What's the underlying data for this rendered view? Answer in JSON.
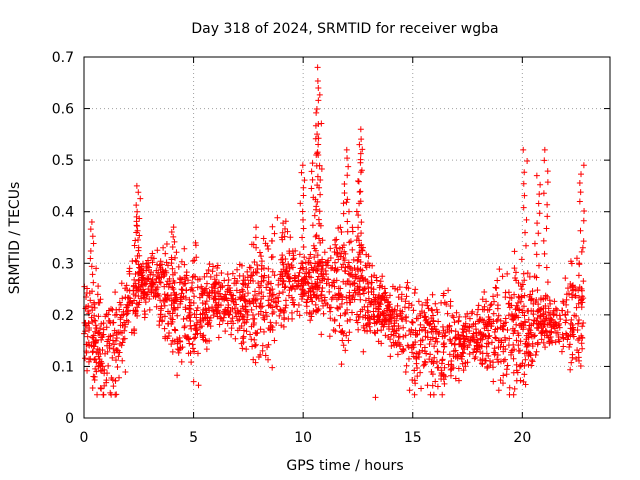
{
  "chart_data": {
    "type": "scatter",
    "title": "Day 318 of 2024, SRMTID for receiver wgba",
    "xlabel": "GPS time / hours",
    "ylabel": "SRMTID / TECUs",
    "xlim": [
      0,
      24
    ],
    "ylim": [
      0,
      0.7
    ],
    "xticks": [
      0,
      5,
      10,
      15,
      20
    ],
    "yticks": [
      0,
      0.1,
      0.2,
      0.3,
      0.4,
      0.5,
      0.6,
      0.7
    ],
    "xtick_labels": [
      "0",
      "5",
      "10",
      "15",
      "20"
    ],
    "ytick_labels": [
      "0",
      "0.1",
      "0.2",
      "0.3",
      "0.4",
      "0.5",
      "0.6",
      "0.7"
    ],
    "grid": true,
    "marker": "+",
    "color": "#ff0000",
    "x_data_end": 22.8,
    "base_level_profile": {
      "x": [
        0,
        0.5,
        1.0,
        1.5,
        2.0,
        2.5,
        3.0,
        4.0,
        5.0,
        6.0,
        7.0,
        8.0,
        9.0,
        10.0,
        11.0,
        12.0,
        13.0,
        14.0,
        15.0,
        16.0,
        17.0,
        18.0,
        19.0,
        20.0,
        21.0,
        22.0,
        22.8
      ],
      "y": [
        0.2,
        0.15,
        0.12,
        0.14,
        0.2,
        0.26,
        0.27,
        0.22,
        0.21,
        0.23,
        0.22,
        0.22,
        0.27,
        0.26,
        0.25,
        0.26,
        0.24,
        0.19,
        0.16,
        0.14,
        0.14,
        0.17,
        0.18,
        0.17,
        0.19,
        0.18,
        0.22
      ]
    },
    "peaks": [
      {
        "x": 0.4,
        "y": 0.38
      },
      {
        "x": 2.45,
        "y": 0.45
      },
      {
        "x": 2.4,
        "y": 0.39
      },
      {
        "x": 4.1,
        "y": 0.37
      },
      {
        "x": 9.95,
        "y": 0.49
      },
      {
        "x": 10.5,
        "y": 0.51
      },
      {
        "x": 10.75,
        "y": 0.68
      },
      {
        "x": 10.7,
        "y": 0.64
      },
      {
        "x": 10.65,
        "y": 0.57
      },
      {
        "x": 12.0,
        "y": 0.52
      },
      {
        "x": 12.6,
        "y": 0.56
      },
      {
        "x": 12.55,
        "y": 0.53
      },
      {
        "x": 20.1,
        "y": 0.52
      },
      {
        "x": 20.7,
        "y": 0.47
      },
      {
        "x": 21.05,
        "y": 0.52
      },
      {
        "x": 22.7,
        "y": 0.49
      }
    ],
    "minimum": {
      "x": 13.3,
      "y": 0.04
    }
  }
}
